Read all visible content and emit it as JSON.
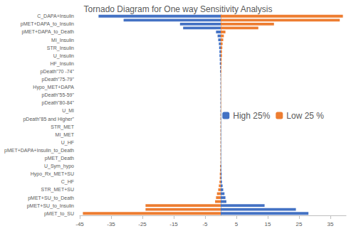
{
  "chart_data": {
    "type": "bar",
    "orientation": "horizontal",
    "title": "Tornado Diagram for One way Sensitivity Analysis",
    "categories": [
      "C_DAPA+Insulin",
      null,
      "pMET+DAPA_to_Insulin",
      null,
      "pMET+DAPA_to_Death",
      null,
      "MI_Insulin",
      null,
      "STR_Insulin",
      null,
      "U_Insulin",
      null,
      "HF_Insulin",
      null,
      "pDeath\"70 -74\"",
      null,
      "pDeath\"75-79\"",
      null,
      "Hypo_MET+DAPA",
      null,
      "pDeath\"55-59\"",
      null,
      "pDeath\"80-84\"",
      null,
      "U_MI",
      null,
      "pDeath\"85 and Higher\"",
      null,
      "STR_MET",
      null,
      "MI_MET",
      null,
      "U_HF",
      null,
      "pMET+DAPA+Insulin_to_Death",
      null,
      "pMET_Death",
      null,
      "U_Sym_hypo",
      null,
      "Hypo_Rx_MET+SU",
      null,
      "C_HF",
      null,
      "STR_MET+SU",
      null,
      "pMET+SU_to_Death",
      null,
      "pMET+SU_to_Insulin",
      null,
      "pMET_to_SU"
    ],
    "series": [
      {
        "name": "High 25%",
        "color": "#4472c4",
        "values": [
          -39,
          -31,
          -13,
          -12,
          -1.5,
          -1,
          -0.8,
          -0.6,
          -0.5,
          -0.4,
          -0.4,
          -0.3,
          -0.3,
          -0.2,
          -0.2,
          -0.1,
          -0.1,
          -0.1,
          -0.1,
          -0.1,
          -0.1,
          -0.1,
          -0.1,
          -0.1,
          -0.1,
          0.1,
          0.1,
          0.1,
          0.1,
          0.1,
          0.1,
          0.1,
          0.1,
          0.1,
          0.1,
          0.1,
          0.1,
          0.1,
          0.2,
          0.2,
          0.3,
          0.3,
          0.4,
          0.6,
          0.8,
          1.2,
          1.5,
          1.8,
          14,
          24,
          28
        ]
      },
      {
        "name": "Low 25 %",
        "color": "#ed7d31",
        "values": [
          39,
          38,
          17,
          12,
          1.5,
          1,
          0.8,
          0.6,
          0.5,
          0.4,
          0.4,
          0.3,
          0.3,
          0.2,
          0.2,
          0.1,
          0.1,
          0.1,
          0.1,
          0.1,
          0.1,
          0.1,
          0.1,
          0.1,
          0.1,
          -0.1,
          -0.1,
          -0.1,
          -0.1,
          -0.1,
          -0.1,
          -0.1,
          -0.1,
          -0.1,
          -0.1,
          -0.1,
          -0.1,
          -0.1,
          -0.2,
          -0.2,
          -0.3,
          -0.3,
          -0.4,
          -0.6,
          -0.8,
          -1.2,
          -1.5,
          -1.8,
          -24,
          -24,
          -44
        ]
      }
    ],
    "xlim": [
      -45,
      40
    ],
    "xticks": [
      -45,
      -35,
      -25,
      -15,
      -5,
      5,
      15,
      25,
      35
    ],
    "grid": false,
    "legend": "right"
  }
}
